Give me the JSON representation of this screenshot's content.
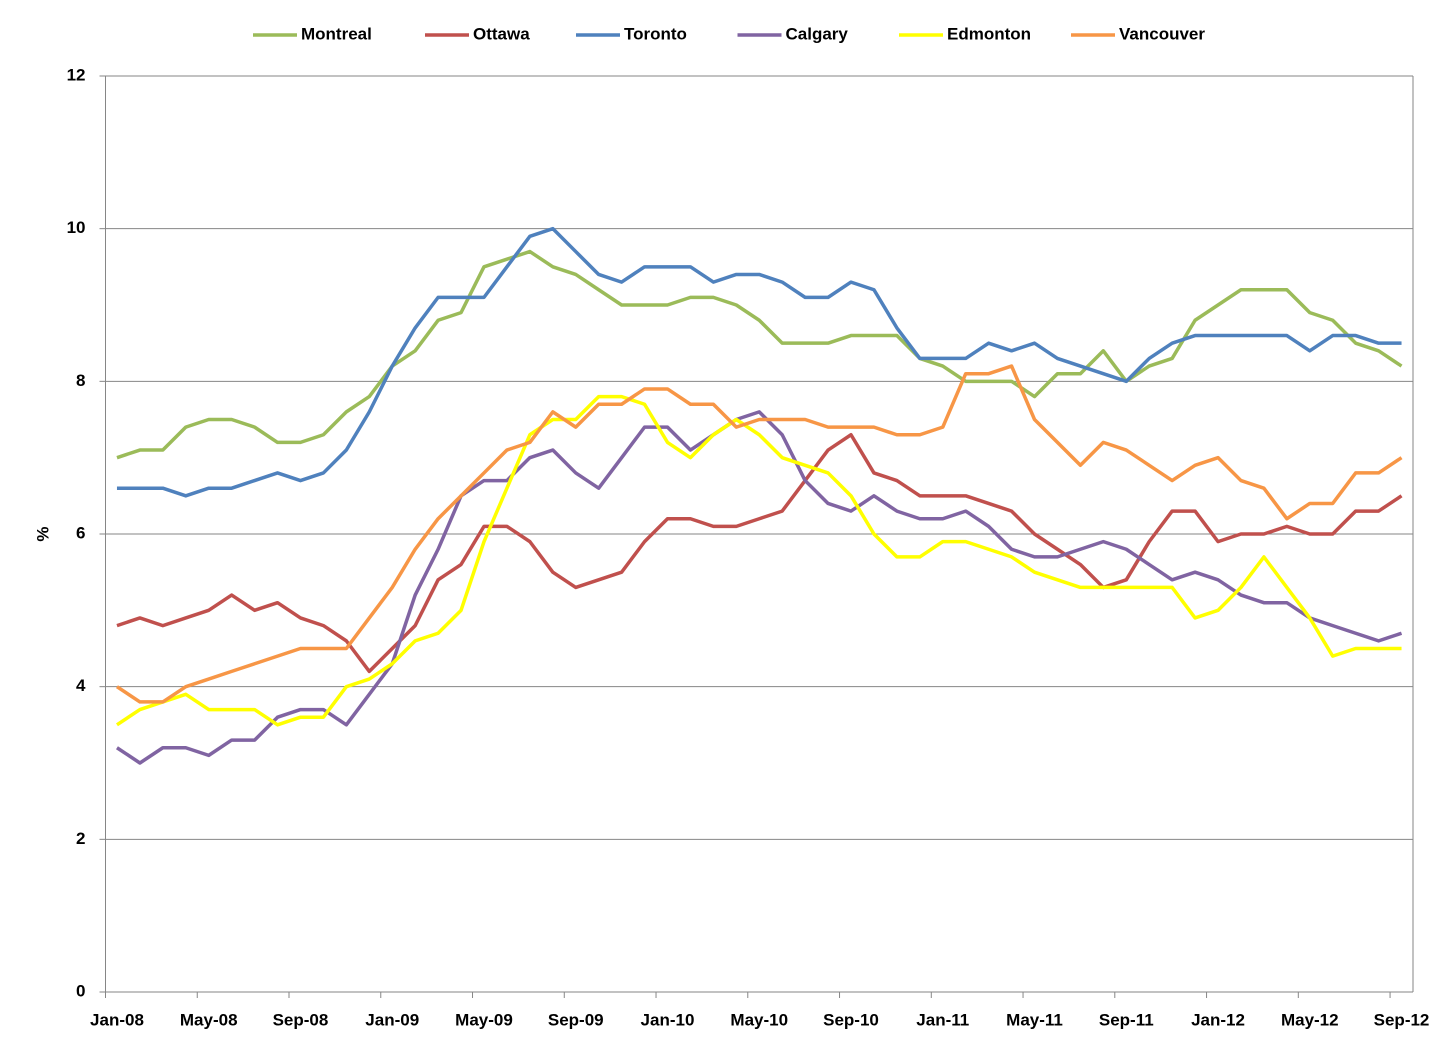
{
  "chart_data": {
    "type": "line",
    "y_label": "%",
    "categories": [
      "Jan-08",
      null,
      null,
      null,
      "May-08",
      null,
      null,
      null,
      "Sep-08",
      null,
      null,
      null,
      "Jan-09",
      null,
      null,
      null,
      "May-09",
      null,
      null,
      null,
      "Sep-09",
      null,
      null,
      null,
      "Jan-10",
      null,
      null,
      null,
      "May-10",
      null,
      null,
      null,
      "Sep-10",
      null,
      null,
      null,
      "Jan-11",
      null,
      null,
      null,
      "May-11",
      null,
      null,
      null,
      "Sep-11",
      null,
      null,
      null,
      "Jan-12",
      null,
      null,
      null,
      "May-12",
      null,
      null,
      null,
      "Sep-12"
    ],
    "series": [
      {
        "name": "Montreal",
        "color": "#9bbb59",
        "values": [
          7.0,
          7.1,
          7.1,
          7.4,
          7.5,
          7.5,
          7.4,
          7.2,
          7.2,
          7.3,
          7.6,
          7.8,
          8.2,
          8.4,
          8.8,
          8.9,
          9.5,
          9.6,
          9.7,
          9.5,
          9.4,
          9.2,
          9.0,
          9.0,
          9.0,
          9.1,
          9.1,
          9.0,
          8.8,
          8.5,
          8.5,
          8.5,
          8.6,
          8.6,
          8.6,
          8.3,
          8.2,
          8.0,
          8.0,
          8.0,
          7.8,
          8.1,
          8.1,
          8.4,
          8.0,
          8.2,
          8.3,
          8.8,
          9.0,
          9.2,
          9.2,
          9.2,
          8.9,
          8.8,
          8.5,
          8.4,
          8.2
        ]
      },
      {
        "name": "Ottawa",
        "color": "#c0504d",
        "values": [
          4.8,
          4.9,
          4.8,
          4.9,
          5.0,
          5.2,
          5.0,
          5.1,
          4.9,
          4.8,
          4.6,
          4.2,
          4.5,
          4.8,
          5.4,
          5.6,
          6.1,
          6.1,
          5.9,
          5.5,
          5.3,
          5.4,
          5.5,
          5.9,
          6.2,
          6.2,
          6.1,
          6.1,
          6.2,
          6.3,
          6.7,
          7.1,
          7.3,
          6.8,
          6.7,
          6.5,
          6.5,
          6.5,
          6.4,
          6.3,
          6.0,
          5.8,
          5.6,
          5.3,
          5.4,
          5.9,
          6.3,
          6.3,
          5.9,
          6.0,
          6.0,
          6.1,
          6.0,
          6.0,
          6.3,
          6.3,
          6.5
        ]
      },
      {
        "name": "Toronto",
        "color": "#4f81bd",
        "values": [
          6.6,
          6.6,
          6.6,
          6.5,
          6.6,
          6.6,
          6.7,
          6.8,
          6.7,
          6.8,
          7.1,
          7.6,
          8.2,
          8.7,
          9.1,
          9.1,
          9.1,
          9.5,
          9.9,
          10.0,
          9.7,
          9.4,
          9.3,
          9.5,
          9.5,
          9.5,
          9.3,
          9.4,
          9.4,
          9.3,
          9.1,
          9.1,
          9.3,
          9.2,
          8.7,
          8.3,
          8.3,
          8.3,
          8.5,
          8.4,
          8.5,
          8.3,
          8.2,
          8.1,
          8.0,
          8.3,
          8.5,
          8.6,
          8.6,
          8.6,
          8.6,
          8.6,
          8.4,
          8.6,
          8.6,
          8.5,
          8.5
        ]
      },
      {
        "name": "Calgary",
        "color": "#8064a2",
        "values": [
          3.2,
          3.0,
          3.2,
          3.2,
          3.1,
          3.3,
          3.3,
          3.6,
          3.7,
          3.7,
          3.5,
          3.9,
          4.3,
          5.2,
          5.8,
          6.5,
          6.7,
          6.7,
          7.0,
          7.1,
          6.8,
          6.6,
          7.0,
          7.4,
          7.4,
          7.1,
          7.3,
          7.5,
          7.6,
          7.3,
          6.7,
          6.4,
          6.3,
          6.5,
          6.3,
          6.2,
          6.2,
          6.3,
          6.1,
          5.8,
          5.7,
          5.7,
          5.8,
          5.9,
          5.8,
          5.6,
          5.4,
          5.5,
          5.4,
          5.2,
          5.1,
          5.1,
          4.9,
          4.8,
          4.7,
          4.6,
          4.7
        ]
      },
      {
        "name": "Edmonton",
        "color": "#ffff00",
        "values": [
          3.5,
          3.7,
          3.8,
          3.9,
          3.7,
          3.7,
          3.7,
          3.5,
          3.6,
          3.6,
          4.0,
          4.1,
          4.3,
          4.6,
          4.7,
          5.0,
          5.9,
          6.6,
          7.3,
          7.5,
          7.5,
          7.8,
          7.8,
          7.7,
          7.2,
          7.0,
          7.3,
          7.5,
          7.3,
          7.0,
          6.9,
          6.8,
          6.5,
          6.0,
          5.7,
          5.7,
          5.9,
          5.9,
          5.8,
          5.7,
          5.5,
          5.4,
          5.3,
          5.3,
          5.3,
          5.3,
          5.3,
          4.9,
          5.0,
          5.3,
          5.7,
          5.3,
          4.9,
          4.4,
          4.5,
          4.5,
          4.5
        ]
      },
      {
        "name": "Vancouver",
        "color": "#f79646",
        "values": [
          4.0,
          3.8,
          3.8,
          4.0,
          4.1,
          4.2,
          4.3,
          4.4,
          4.5,
          4.5,
          4.5,
          4.9,
          5.3,
          5.8,
          6.2,
          6.5,
          6.8,
          7.1,
          7.2,
          7.6,
          7.4,
          7.7,
          7.7,
          7.9,
          7.9,
          7.7,
          7.7,
          7.4,
          7.5,
          7.5,
          7.5,
          7.4,
          7.4,
          7.4,
          7.3,
          7.3,
          7.4,
          8.1,
          8.1,
          8.2,
          7.5,
          7.2,
          6.9,
          7.2,
          7.1,
          6.9,
          6.7,
          6.9,
          7.0,
          6.7,
          6.6,
          6.2,
          6.4,
          6.4,
          6.8,
          6.8,
          7.0
        ]
      }
    ],
    "ylim": [
      0,
      12
    ],
    "yticks": [
      0,
      2,
      4,
      6,
      8,
      10,
      12
    ],
    "grid": true,
    "legend": "top"
  }
}
